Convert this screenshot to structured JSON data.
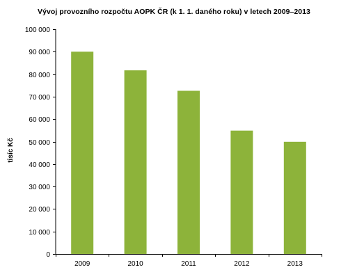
{
  "chart_data": {
    "type": "bar",
    "title": "Vývoj provozního rozpočtu AOPK ČR (k 1. 1. daného roku) v letech 2009–2013",
    "xlabel": "",
    "ylabel": "tisíc Kč",
    "categories": [
      "2009",
      "2010",
      "2011",
      "2012",
      "2013"
    ],
    "values": [
      90000,
      81700,
      72600,
      54900,
      49900
    ],
    "ylim": [
      0,
      100000
    ],
    "yticks": [
      0,
      10000,
      20000,
      30000,
      40000,
      50000,
      60000,
      70000,
      80000,
      90000,
      100000
    ],
    "ytick_labels": [
      "0",
      "10 000",
      "20 000",
      "30 000",
      "40 000",
      "50 000",
      "60 000",
      "70 000",
      "80 000",
      "90 000",
      "100 000"
    ],
    "grid": false,
    "legend": "none",
    "bar_color": "#8db33a",
    "axis_color": "#000000"
  }
}
